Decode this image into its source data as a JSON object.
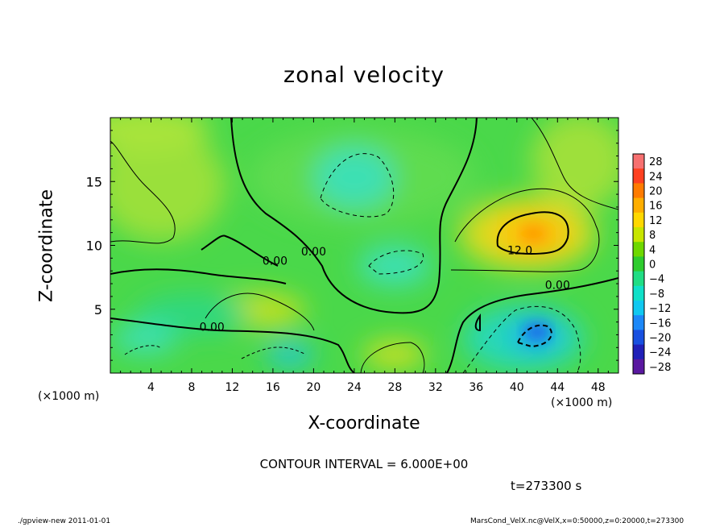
{
  "chart_data": {
    "type": "heatmap",
    "title": "zonal velocity",
    "xlabel": "X-coordinate",
    "ylabel": "Z-coordinate",
    "x_unit_label": "(×1000 m)",
    "xlim": [
      0,
      50
    ],
    "ylim": [
      0,
      20
    ],
    "x_ticks": [
      4,
      8,
      12,
      16,
      20,
      24,
      28,
      32,
      36,
      40,
      44,
      48
    ],
    "y_ticks": [
      5,
      10,
      15
    ],
    "colorbar": {
      "levels": [
        28,
        24,
        20,
        16,
        12,
        8,
        4,
        0,
        -4,
        -8,
        -12,
        -16,
        -20,
        -24,
        -28
      ],
      "colors": [
        "#f77070",
        "#fe4020",
        "#ff7b00",
        "#ffae00",
        "#ffd800",
        "#c8e600",
        "#6ed800",
        "#2ecc2e",
        "#20dd84",
        "#10e0c8",
        "#10c8f0",
        "#1c88f8",
        "#1850e0",
        "#2020b8",
        "#5a18a0"
      ]
    },
    "contour_labels": [
      {
        "text": "0.00",
        "x": 16.2,
        "z": 8.5
      },
      {
        "text": "0.00",
        "x": 20.0,
        "z": 9.2
      },
      {
        "text": "0.00",
        "x": 10.0,
        "z": 3.3
      },
      {
        "text": "0.00",
        "x": 44.0,
        "z": 6.6
      },
      {
        "text": "12.0",
        "x": 40.3,
        "z": 9.3
      }
    ],
    "features": [
      {
        "kind": "max",
        "x": 41,
        "z": 10.5,
        "value": 13
      },
      {
        "kind": "min",
        "x": 42,
        "z": 3.0,
        "value": -15
      }
    ]
  },
  "footer": {
    "contour_interval": "CONTOUR INTERVAL = 6.000E+00",
    "time": "t=273300 s",
    "left": "./gpview-new   2011-01-01",
    "right": "MarsCond_VelX.nc@VelX,x=0:50000,z=0:20000,t=273300"
  }
}
